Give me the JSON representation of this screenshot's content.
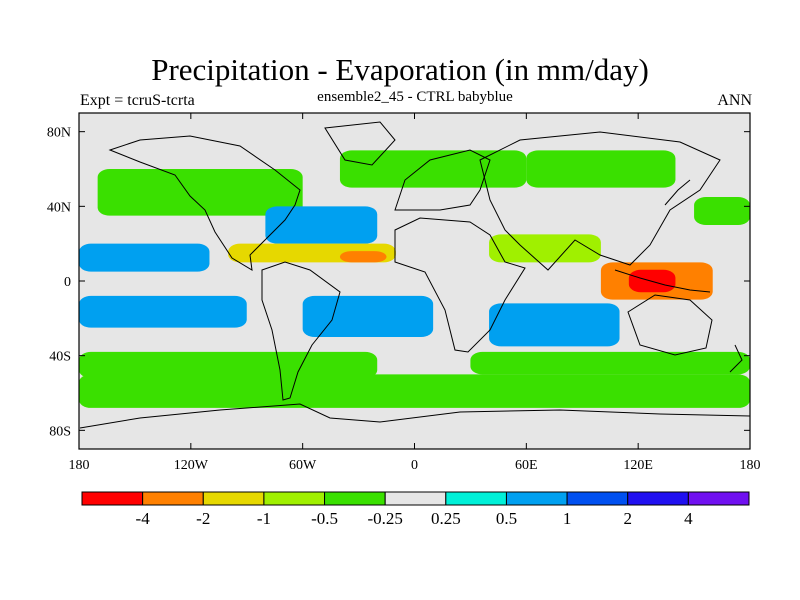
{
  "title": "Precipitation - Evaporation (in mm/day)",
  "subtitle": "ensemble2_45 - CTRL babyblue",
  "left_label": "Expt = tcruS-tcrta",
  "right_label": "ANN",
  "map": {
    "projection": "cylindrical-equidistant",
    "lon_range": [
      -180,
      180
    ],
    "lat_range": [
      -90,
      90
    ],
    "lon_ticks": [
      {
        "value": -180,
        "label": "180"
      },
      {
        "value": -120,
        "label": "120W"
      },
      {
        "value": -60,
        "label": "60W"
      },
      {
        "value": 0,
        "label": "0"
      },
      {
        "value": 60,
        "label": "60E"
      },
      {
        "value": 120,
        "label": "120E"
      },
      {
        "value": 180,
        "label": "180"
      }
    ],
    "lat_ticks": [
      {
        "value": 80,
        "label": "80N"
      },
      {
        "value": 40,
        "label": "40N"
      },
      {
        "value": 0,
        "label": "0"
      },
      {
        "value": -40,
        "label": "40S"
      },
      {
        "value": -80,
        "label": "80S"
      }
    ]
  },
  "colorbar": {
    "colors": [
      "#ff0000",
      "#ff8000",
      "#e6d800",
      "#a0f000",
      "#3ae000",
      "#e6e6e6",
      "#00f0d8",
      "#00a0f0",
      "#0050f0",
      "#2010f0",
      "#7010f0"
    ],
    "labels": [
      "-4",
      "-2",
      "-1",
      "-0.5",
      "-0.25",
      "0.25",
      "0.5",
      "1",
      "2",
      "4"
    ]
  },
  "chart_data": {
    "type": "filled-contour-map",
    "variable": "Precipitation - Evaporation",
    "units": "mm/day",
    "levels": [
      -4,
      -2,
      -1,
      -0.5,
      -0.25,
      0.25,
      0.5,
      1,
      2,
      4
    ],
    "regions": [
      {
        "lon": [
          -180,
          -20
        ],
        "lat": [
          -52,
          -38
        ],
        "value": -0.3
      },
      {
        "lon": [
          -180,
          180
        ],
        "lat": [
          -68,
          -50
        ],
        "value": -0.3
      },
      {
        "lon": [
          30,
          180
        ],
        "lat": [
          -50,
          -38
        ],
        "value": -0.3
      },
      {
        "lon": [
          -170,
          -60
        ],
        "lat": [
          35,
          60
        ],
        "value": -0.3
      },
      {
        "lon": [
          -40,
          60
        ],
        "lat": [
          50,
          70
        ],
        "value": -0.3
      },
      {
        "lon": [
          60,
          140
        ],
        "lat": [
          50,
          70
        ],
        "value": -0.3
      },
      {
        "lon": [
          150,
          180
        ],
        "lat": [
          30,
          45
        ],
        "value": -0.3
      },
      {
        "lon": [
          -180,
          -110
        ],
        "lat": [
          5,
          20
        ],
        "value": 0.7
      },
      {
        "lon": [
          -180,
          -90
        ],
        "lat": [
          -25,
          -8
        ],
        "value": 0.7
      },
      {
        "lon": [
          -60,
          10
        ],
        "lat": [
          -30,
          -8
        ],
        "value": 0.7
      },
      {
        "lon": [
          40,
          110
        ],
        "lat": [
          -35,
          -12
        ],
        "value": 0.7
      },
      {
        "lon": [
          -80,
          -20
        ],
        "lat": [
          20,
          40
        ],
        "value": 0.7
      },
      {
        "lon": [
          -100,
          -10
        ],
        "lat": [
          10,
          20
        ],
        "value": -1.5
      },
      {
        "lon": [
          -40,
          -15
        ],
        "lat": [
          10,
          16
        ],
        "value": -3.0
      },
      {
        "lon": [
          100,
          160
        ],
        "lat": [
          -10,
          10
        ],
        "value": -3.0
      },
      {
        "lon": [
          115,
          140
        ],
        "lat": [
          -6,
          6
        ],
        "value": -5.0
      },
      {
        "lon": [
          40,
          100
        ],
        "lat": [
          10,
          25
        ],
        "value": -0.75
      }
    ]
  }
}
